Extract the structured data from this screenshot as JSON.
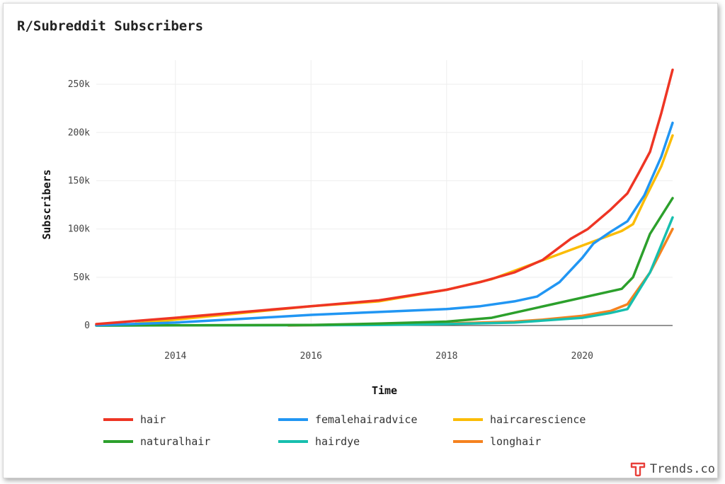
{
  "chart_data": {
    "type": "line",
    "title": "R/Subreddit Subscribers",
    "xlabel": "Time",
    "ylabel": "Subscribers",
    "xlim": [
      "2012-11-01",
      "2021-05-01"
    ],
    "ylim": [
      0,
      275000
    ],
    "x_ticks": [
      "2014",
      "2016",
      "2018",
      "2020"
    ],
    "y_ticks": [
      "0",
      "50k",
      "100k",
      "150k",
      "200k",
      "250k"
    ],
    "grid": true,
    "legend_position": "bottom",
    "series": [
      {
        "name": "hair",
        "color": "#ee3524",
        "points": [
          [
            "2012-11-01",
            1500
          ],
          [
            "2014-01-01",
            8000
          ],
          [
            "2015-01-01",
            14000
          ],
          [
            "2016-01-01",
            20000
          ],
          [
            "2017-01-01",
            26000
          ],
          [
            "2018-01-01",
            37000
          ],
          [
            "2018-07-01",
            45000
          ],
          [
            "2019-01-01",
            55000
          ],
          [
            "2019-06-01",
            68000
          ],
          [
            "2019-11-01",
            90000
          ],
          [
            "2020-02-01",
            100000
          ],
          [
            "2020-06-01",
            120000
          ],
          [
            "2020-09-01",
            137000
          ],
          [
            "2020-11-01",
            158000
          ],
          [
            "2021-01-01",
            180000
          ],
          [
            "2021-03-01",
            220000
          ],
          [
            "2021-05-01",
            265000
          ]
        ]
      },
      {
        "name": "femalehairadvice",
        "color": "#2196f3",
        "points": [
          [
            "2012-11-01",
            300
          ],
          [
            "2014-01-01",
            3000
          ],
          [
            "2015-01-01",
            7000
          ],
          [
            "2016-01-01",
            11000
          ],
          [
            "2017-01-01",
            14000
          ],
          [
            "2018-01-01",
            17000
          ],
          [
            "2018-07-01",
            20000
          ],
          [
            "2019-01-01",
            25000
          ],
          [
            "2019-05-01",
            30000
          ],
          [
            "2019-09-01",
            45000
          ],
          [
            "2020-01-01",
            70000
          ],
          [
            "2020-03-01",
            85000
          ],
          [
            "2020-06-01",
            97000
          ],
          [
            "2020-09-01",
            108000
          ],
          [
            "2020-12-01",
            135000
          ],
          [
            "2021-03-01",
            175000
          ],
          [
            "2021-05-01",
            210000
          ]
        ]
      },
      {
        "name": "haircarescience",
        "color": "#fbbc05",
        "points": [
          [
            "2013-06-01",
            2000
          ],
          [
            "2014-06-01",
            9000
          ],
          [
            "2015-06-01",
            16000
          ],
          [
            "2016-01-01",
            20000
          ],
          [
            "2017-01-01",
            25000
          ],
          [
            "2018-01-01",
            37000
          ],
          [
            "2018-09-01",
            48000
          ],
          [
            "2020-08-01",
            98000
          ],
          [
            "2020-10-01",
            105000
          ],
          [
            "2020-12-01",
            130000
          ],
          [
            "2021-03-01",
            165000
          ],
          [
            "2021-05-01",
            197000
          ]
        ]
      },
      {
        "name": "naturalhair",
        "color": "#2ca02c",
        "points": [
          [
            "2012-11-01",
            0
          ],
          [
            "2016-01-01",
            600
          ],
          [
            "2017-01-01",
            2000
          ],
          [
            "2018-01-01",
            4000
          ],
          [
            "2018-09-01",
            8000
          ],
          [
            "2020-08-01",
            38000
          ],
          [
            "2020-10-01",
            50000
          ],
          [
            "2021-01-01",
            95000
          ],
          [
            "2021-05-01",
            132000
          ]
        ]
      },
      {
        "name": "hairdye",
        "color": "#17bfae",
        "points": [
          [
            "2012-11-01",
            0
          ],
          [
            "2017-01-01",
            500
          ],
          [
            "2018-01-01",
            1500
          ],
          [
            "2019-01-01",
            3000
          ],
          [
            "2020-01-01",
            8000
          ],
          [
            "2020-06-01",
            13000
          ],
          [
            "2020-09-01",
            17000
          ],
          [
            "2021-01-01",
            55000
          ],
          [
            "2021-05-01",
            112000
          ]
        ]
      },
      {
        "name": "longhair",
        "color": "#f5821f",
        "points": [
          [
            "2015-09-01",
            0
          ],
          [
            "2017-01-01",
            1000
          ],
          [
            "2018-01-01",
            2000
          ],
          [
            "2019-01-01",
            4000
          ],
          [
            "2019-06-01",
            6000
          ],
          [
            "2020-01-01",
            10000
          ],
          [
            "2020-06-01",
            15000
          ],
          [
            "2020-09-01",
            22000
          ],
          [
            "2021-01-01",
            55000
          ],
          [
            "2021-05-01",
            100000
          ]
        ]
      }
    ]
  },
  "footer": {
    "brand_name": "Trends.co",
    "logo_icon": "trends-t-logo",
    "logo_color": "#e8403a"
  }
}
